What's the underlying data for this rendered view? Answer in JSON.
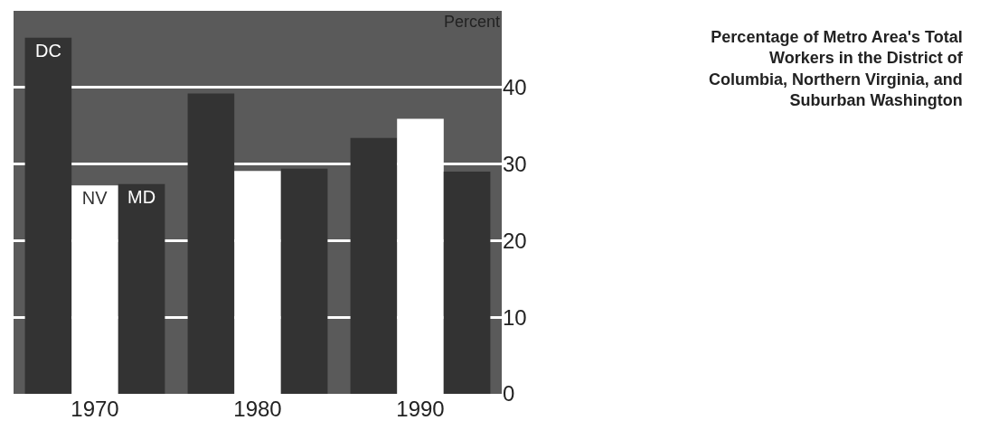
{
  "chart_data": {
    "type": "bar",
    "title": "Percentage of Metro Area's Total Workers in the District of Columbia, Northern Virginia, and Suburban Washington",
    "ylabel": "Percent",
    "categories": [
      "1970",
      "1980",
      "1990"
    ],
    "series": [
      {
        "name": "DC",
        "color": "#333333",
        "values": [
          46.5,
          39.2,
          33.4
        ]
      },
      {
        "name": "NV",
        "color": "#ffffff",
        "values": [
          27.2,
          29.1,
          35.9
        ]
      },
      {
        "name": "MD",
        "color": "#333333",
        "values": [
          27.4,
          29.4,
          29.0
        ]
      }
    ],
    "ylim": [
      0,
      50
    ],
    "yticks": [
      0,
      10,
      20,
      30,
      40
    ],
    "grid": "y",
    "legend": false
  }
}
